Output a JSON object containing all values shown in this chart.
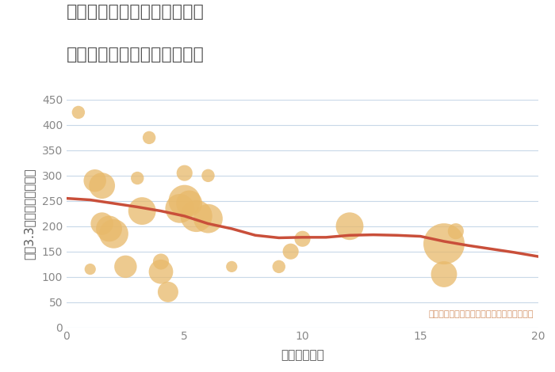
{
  "title_line1": "神奈川県横浜市中区小港町の",
  "title_line2": "駅距離別中古マンション価格",
  "xlabel": "駅距離（分）",
  "ylabel": "坪（3.3㎡）単価（万円）",
  "xlim": [
    0,
    20
  ],
  "ylim": [
    0,
    450
  ],
  "xticks": [
    0,
    5,
    10,
    15,
    20
  ],
  "yticks": [
    0,
    50,
    100,
    150,
    200,
    250,
    300,
    350,
    400,
    450
  ],
  "scatter_x": [
    0.5,
    1.0,
    1.2,
    1.5,
    1.5,
    1.8,
    2.0,
    2.5,
    3.0,
    3.2,
    3.5,
    4.0,
    4.0,
    4.3,
    4.8,
    5.0,
    5.0,
    5.2,
    5.5,
    6.0,
    6.0,
    7.0,
    9.0,
    9.5,
    10.0,
    12.0,
    16.0,
    16.0,
    16.5
  ],
  "scatter_y": [
    425,
    115,
    290,
    280,
    205,
    195,
    185,
    120,
    295,
    230,
    375,
    110,
    130,
    70,
    235,
    305,
    250,
    245,
    220,
    215,
    300,
    120,
    120,
    150,
    175,
    200,
    165,
    105,
    190
  ],
  "scatter_size": [
    20,
    15,
    60,
    80,
    60,
    80,
    100,
    60,
    20,
    90,
    20,
    70,
    30,
    50,
    100,
    30,
    120,
    80,
    120,
    100,
    20,
    15,
    20,
    30,
    30,
    90,
    200,
    80,
    30
  ],
  "trend_x": [
    0,
    1,
    2,
    3,
    4,
    5,
    6,
    7,
    8,
    9,
    10,
    11,
    12,
    13,
    14,
    15,
    16,
    17,
    18,
    19,
    20
  ],
  "trend_y": [
    255,
    252,
    245,
    238,
    230,
    220,
    205,
    195,
    182,
    177,
    178,
    178,
    182,
    183,
    182,
    180,
    170,
    162,
    155,
    148,
    140
  ],
  "scatter_color": "#E8B96A",
  "scatter_alpha": 0.75,
  "trend_color": "#C94F3A",
  "trend_linewidth": 2.5,
  "background_color": "#FFFFFF",
  "grid_color": "#C8D8E8",
  "title_color": "#555555",
  "axis_label_color": "#555555",
  "tick_color": "#888888",
  "annotation_text": "円の大きさは、取引のあった物件面積を示す",
  "annotation_color": "#D4956A",
  "title_fontsize": 16,
  "axis_label_fontsize": 11,
  "tick_fontsize": 10
}
